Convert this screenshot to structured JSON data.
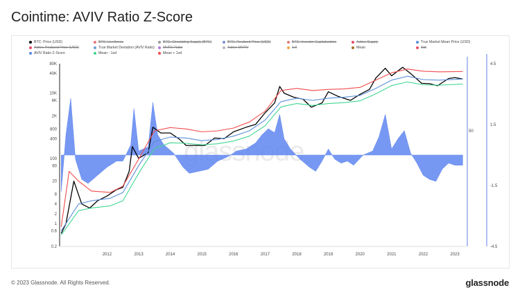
{
  "title": "Cointime: AVIV Ratio Z-Score",
  "footer": "© 2023 Glassnode. All Rights Reserved.",
  "brand": "glassnode",
  "watermark": "glassnode",
  "legend": [
    {
      "label": "BTC: Price (USD)",
      "color": "#000000",
      "active": true
    },
    {
      "label": "BTC: Liveliness",
      "color": "#e8727e",
      "active": false
    },
    {
      "label": "BTC: Circulating Supply (BTC)",
      "color": "#9a9a9a",
      "active": false
    },
    {
      "label": "BTC: Realized Price (USD)",
      "color": "#7b8fd6",
      "active": false
    },
    {
      "label": "BTC: Investor Capitalization",
      "color": "#e07b7b",
      "active": false
    },
    {
      "label": "Active Supply",
      "color": "#e84c6b",
      "active": false
    },
    {
      "label": "True Market Mean Price (USD)",
      "color": "#5a8fd8",
      "active": true
    },
    {
      "label": "Active Realized Price (USD)",
      "color": "#e84c6b",
      "active": false
    },
    {
      "label": "True Market Deviation (AVIV Ratio)",
      "color": "#6f9ad8",
      "active": true
    },
    {
      "label": "MVRV Ratio",
      "color": "#b07ad8",
      "active": false
    },
    {
      "label": "Active MVRV",
      "color": "#b7b7b7",
      "active": false
    },
    {
      "label": "1.0",
      "color": "#f0a640",
      "active": false
    },
    {
      "label": "Mean",
      "color": "#a86d2a",
      "active": true
    },
    {
      "label": "Std",
      "color": "#e84c6b",
      "active": false
    },
    {
      "label": "AVIV Ratio Z-Score",
      "color": "#5f86f0",
      "active": true
    },
    {
      "label": "Mean - 1sd",
      "color": "#3fd693",
      "active": true
    },
    {
      "label": "Mean + 1sd",
      "color": "#f04b4b",
      "active": true
    }
  ],
  "chart_data": {
    "type": "line",
    "x_ticks": [
      "2012",
      "2013",
      "2014",
      "2015",
      "2016",
      "2017",
      "2018",
      "2019",
      "2020",
      "2021",
      "2022",
      "2023"
    ],
    "y_left_ticks": [
      "80K",
      "40K",
      "10K",
      "6K",
      "2K",
      "800",
      "400",
      "100",
      "60",
      "20",
      "8",
      "4",
      "2",
      "1",
      "0.6",
      "0.2"
    ],
    "y_left_scale": "log",
    "y_left_range": [
      0.2,
      80000
    ],
    "y_right_ticks": [
      "4.5",
      "1.5",
      "-1.5",
      "-4.5"
    ],
    "y_right_range": [
      -4.5,
      4.5
    ],
    "mid_label": "50",
    "series": [
      {
        "name": "BTC: Price (USD)",
        "color": "#000000",
        "x": [
          2011.05,
          2011.2,
          2011.45,
          2011.7,
          2011.95,
          2012.2,
          2012.5,
          2012.8,
          2013.0,
          2013.2,
          2013.3,
          2013.5,
          2013.8,
          2013.95,
          2014.2,
          2014.5,
          2014.8,
          2015.0,
          2015.3,
          2015.6,
          2015.9,
          2016.2,
          2016.5,
          2016.9,
          2017.2,
          2017.5,
          2017.8,
          2017.96,
          2018.1,
          2018.4,
          2018.7,
          2018.96,
          2019.3,
          2019.5,
          2019.8,
          2020.2,
          2020.5,
          2020.8,
          2021.0,
          2021.3,
          2021.5,
          2021.85,
          2022.1,
          2022.45,
          2022.7,
          2022.95,
          2023.3,
          2023.5,
          2023.75
        ],
        "y": [
          0.5,
          1,
          20,
          4,
          3,
          5,
          7,
          11,
          13,
          40,
          230,
          100,
          150,
          900,
          600,
          600,
          380,
          250,
          250,
          250,
          420,
          400,
          650,
          900,
          1100,
          2500,
          5000,
          16000,
          10000,
          7500,
          6500,
          3700,
          5000,
          11000,
          8000,
          6000,
          9200,
          13000,
          29000,
          58000,
          34000,
          62000,
          40000,
          20000,
          19500,
          16800,
          28000,
          30000,
          27000
        ]
      },
      {
        "name": "True Market Mean Price (USD)",
        "color": "#5a8fd8",
        "x": [
          2011.05,
          2011.6,
          2012.0,
          2012.6,
          2013.0,
          2013.5,
          2014.0,
          2014.5,
          2015.0,
          2015.5,
          2016.0,
          2016.5,
          2017.0,
          2017.5,
          2018.0,
          2018.5,
          2019.0,
          2019.5,
          2020.0,
          2020.5,
          2021.0,
          2021.5,
          2022.0,
          2022.5,
          2023.0,
          2023.75
        ],
        "y": [
          0.6,
          4,
          5,
          6,
          9,
          60,
          330,
          450,
          420,
          350,
          380,
          480,
          700,
          1500,
          5500,
          7000,
          6000,
          7000,
          7500,
          8500,
          14000,
          25000,
          33000,
          26000,
          25000,
          27000
        ]
      },
      {
        "name": "Mean - 1sd",
        "color": "#3fd693",
        "x": [
          2011.05,
          2011.6,
          2012.0,
          2012.6,
          2013.0,
          2013.5,
          2014.0,
          2014.5,
          2015.0,
          2015.5,
          2016.0,
          2016.5,
          2017.0,
          2017.5,
          2018.0,
          2018.5,
          2019.0,
          2019.5,
          2020.0,
          2020.5,
          2021.0,
          2021.5,
          2022.0,
          2022.5,
          2023.0,
          2023.75
        ],
        "y": [
          0.45,
          2.5,
          3,
          3.5,
          5,
          35,
          200,
          300,
          290,
          260,
          280,
          340,
          480,
          1000,
          3800,
          4800,
          4200,
          4800,
          5100,
          5800,
          9500,
          17000,
          22000,
          18000,
          17500,
          19000
        ]
      },
      {
        "name": "Mean + 1sd",
        "color": "#f04b4b",
        "x": [
          2011.05,
          2011.3,
          2011.6,
          2012.0,
          2012.6,
          2013.0,
          2013.5,
          2014.0,
          2014.5,
          2015.0,
          2015.5,
          2016.0,
          2016.5,
          2017.0,
          2017.5,
          2018.0,
          2018.5,
          2019.0,
          2019.5,
          2020.0,
          2020.5,
          2021.0,
          2021.5,
          2022.0,
          2022.5,
          2023.0,
          2023.75
        ],
        "y": [
          0.8,
          40,
          20,
          10,
          9,
          14,
          95,
          700,
          880,
          800,
          650,
          700,
          850,
          1300,
          2800,
          12000,
          14000,
          12000,
          13000,
          13500,
          15000,
          25000,
          42000,
          55000,
          47000,
          45000,
          46000
        ]
      },
      {
        "name": "AVIV Ratio Z-Score",
        "color": "#5f86f0",
        "x": [
          2011.05,
          2011.2,
          2011.35,
          2011.5,
          2011.7,
          2011.9,
          2012.2,
          2012.5,
          2012.8,
          2013.0,
          2013.25,
          2013.35,
          2013.5,
          2013.8,
          2013.95,
          2014.1,
          2014.3,
          2014.6,
          2014.9,
          2015.1,
          2015.4,
          2015.7,
          2016.0,
          2016.3,
          2016.6,
          2016.9,
          2017.2,
          2017.4,
          2017.6,
          2017.8,
          2017.96,
          2018.1,
          2018.3,
          2018.6,
          2018.9,
          2019.1,
          2019.3,
          2019.5,
          2019.7,
          2019.9,
          2020.1,
          2020.3,
          2020.6,
          2020.9,
          2021.1,
          2021.3,
          2021.5,
          2021.7,
          2021.9,
          2022.1,
          2022.3,
          2022.5,
          2022.7,
          2022.9,
          2023.1,
          2023.3,
          2023.5,
          2023.75
        ],
        "y": [
          -1.8,
          1.0,
          2.8,
          -0.2,
          -1.2,
          -1.4,
          -1.0,
          -0.6,
          -0.3,
          -0.3,
          0.5,
          2.3,
          0.2,
          0.4,
          2.6,
          1.0,
          0.5,
          0.1,
          -0.6,
          -0.9,
          -0.8,
          -0.7,
          -0.3,
          -0.1,
          0.2,
          0.3,
          0.6,
          1.0,
          1.3,
          1.1,
          2.0,
          0.8,
          0.3,
          -0.2,
          -0.6,
          -0.8,
          -0.3,
          0.3,
          -0.2,
          -0.4,
          -0.3,
          -0.5,
          0.0,
          0.2,
          0.9,
          2.0,
          0.3,
          0.8,
          1.2,
          0.1,
          -0.4,
          -1.0,
          -1.2,
          -1.3,
          -0.7,
          -0.4,
          -0.5,
          -0.5
        ]
      }
    ]
  }
}
